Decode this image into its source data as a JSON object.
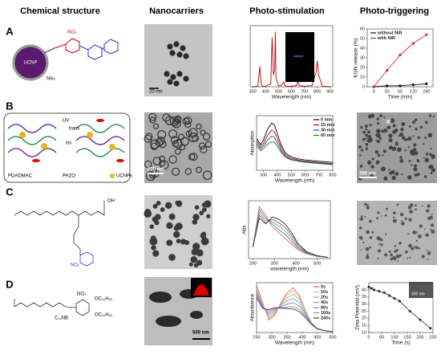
{
  "headers": [
    "Chemical structure",
    "Nanocarriers",
    "Photo-stimulation",
    "Photo-triggering"
  ],
  "row_labels": [
    "A",
    "B",
    "C",
    "D"
  ],
  "structures": {
    "A": [
      "UCNP",
      "NH₂",
      "NO₂"
    ],
    "B": [
      "UV",
      "trans",
      "cis",
      "PDADMAC",
      "PAZO",
      "UCNPs"
    ],
    "C": [
      "OH",
      "NO₂"
    ],
    "D": [
      "C₁₂NB",
      "NO₂",
      "OC₁₂H₂₅",
      "OC₁₂H₂₅"
    ]
  },
  "micrographs": {
    "A": "20 nm",
    "B": "200 nm",
    "B_release": "200 nm",
    "B_release_label": "B'",
    "D": "500 nm",
    "D_zeta_inset": "500 nm"
  },
  "chart_data": [
    {
      "type": "line",
      "xlabel": "Wavelength (nm)",
      "xlim": [
        280,
        920
      ],
      "xticks": [
        300,
        400,
        500,
        600,
        700,
        800,
        900
      ],
      "ylim": [
        0,
        1.05
      ],
      "x": [
        300,
        340,
        355,
        365,
        375,
        400,
        440,
        450,
        460,
        470,
        475,
        480,
        500,
        520,
        540,
        550,
        560,
        600,
        640,
        650,
        660,
        700,
        760,
        790,
        800,
        810,
        840,
        900
      ],
      "series": [
        {
          "color": "#c00000",
          "values": [
            0,
            0.01,
            0.35,
            0.05,
            0.01,
            0.01,
            0.05,
            0.85,
            0.2,
            0.3,
            0.95,
            0.15,
            0.02,
            0.02,
            0.08,
            0.02,
            0.01,
            0.01,
            0.02,
            0.1,
            0.02,
            0.01,
            0.02,
            0.25,
            0.45,
            0.2,
            0.01,
            0
          ]
        }
      ]
    },
    {
      "type": "line",
      "xlabel": "Time (min)",
      "ylabel": "KGN release (%)",
      "categories": [
        "0",
        "30",
        "60",
        "120",
        "240"
      ],
      "ylim": [
        0,
        60
      ],
      "yticks": [
        0,
        10,
        20,
        30,
        40,
        50,
        60
      ],
      "legend": "upper left",
      "markers": true,
      "series": [
        {
          "name": "without NIR",
          "color": "#111111",
          "values": [
            0,
            1,
            1,
            2,
            3
          ]
        },
        {
          "name": "with NIR",
          "color": "#d62728",
          "values": [
            0,
            17,
            33,
            45,
            54
          ]
        }
      ]
    },
    {
      "type": "line",
      "xlabel": "Wavelength (nm)",
      "ylabel": "Absorption",
      "xlim": [
        250,
        800
      ],
      "xticks": [
        300,
        400,
        500,
        600,
        700,
        800
      ],
      "ylim": [
        0.1,
        1
      ],
      "legend": "upper right",
      "x": [
        250,
        280,
        300,
        330,
        360,
        380,
        400,
        430,
        460,
        500,
        550,
        600,
        700,
        800
      ],
      "series": [
        {
          "name": "0 min",
          "color": "#000000",
          "values": [
            0.62,
            0.52,
            0.6,
            0.78,
            0.88,
            0.84,
            0.7,
            0.5,
            0.38,
            0.32,
            0.29,
            0.27,
            0.25,
            0.23
          ]
        },
        {
          "name": "15 min",
          "color": "#e00000",
          "values": [
            0.58,
            0.48,
            0.54,
            0.68,
            0.76,
            0.73,
            0.62,
            0.45,
            0.35,
            0.3,
            0.27,
            0.25,
            0.23,
            0.21
          ]
        },
        {
          "name": "30 min",
          "color": "#1f3fd6",
          "values": [
            0.54,
            0.45,
            0.5,
            0.6,
            0.66,
            0.64,
            0.55,
            0.41,
            0.33,
            0.28,
            0.26,
            0.24,
            0.22,
            0.2
          ]
        },
        {
          "name": "60 min",
          "color": "#1a8a1a",
          "values": [
            0.5,
            0.42,
            0.46,
            0.53,
            0.57,
            0.56,
            0.49,
            0.38,
            0.31,
            0.27,
            0.25,
            0.23,
            0.21,
            0.19
          ]
        }
      ]
    },
    {
      "type": "line",
      "xlabel": "wavelength (nm)",
      "ylabel": "Abs",
      "xlim": [
        180,
        560
      ],
      "xticks": [
        200,
        300,
        400,
        500
      ],
      "ylim": [
        0,
        1
      ],
      "x": [
        200,
        230,
        260,
        290,
        320,
        350,
        380,
        410,
        450,
        500,
        550
      ],
      "series": [
        {
          "color": "#e06666",
          "values": [
            0.2,
            0.9,
            0.75,
            0.55,
            0.45,
            0.35,
            0.25,
            0.15,
            0.08,
            0.04,
            0.02
          ]
        },
        {
          "color": "#3d85c6",
          "values": [
            0.2,
            0.85,
            0.7,
            0.6,
            0.5,
            0.42,
            0.3,
            0.18,
            0.09,
            0.04,
            0.02
          ]
        },
        {
          "color": "#6aa84f",
          "values": [
            0.2,
            0.8,
            0.66,
            0.64,
            0.56,
            0.48,
            0.35,
            0.2,
            0.1,
            0.05,
            0.02
          ]
        },
        {
          "color": "#a64d79",
          "values": [
            0.2,
            0.75,
            0.62,
            0.68,
            0.62,
            0.54,
            0.4,
            0.23,
            0.11,
            0.05,
            0.02
          ]
        },
        {
          "color": "#333333",
          "values": [
            0.2,
            0.7,
            0.6,
            0.72,
            0.68,
            0.6,
            0.45,
            0.26,
            0.12,
            0.05,
            0.02
          ]
        }
      ]
    },
    {
      "type": "line",
      "xlabel": "Wavelength (nm)",
      "ylabel": "Absorbance",
      "xlim": [
        250,
        500
      ],
      "xticks": [
        250,
        300,
        350,
        400,
        450,
        500
      ],
      "ylim": [
        0,
        1
      ],
      "legend": "upper right",
      "x": [
        250,
        270,
        290,
        310,
        330,
        350,
        370,
        390,
        410,
        430,
        450,
        480,
        500
      ],
      "series": [
        {
          "name": "0s",
          "color": "#e06666",
          "values": [
            0.95,
            0.6,
            0.25,
            0.35,
            0.6,
            0.8,
            0.9,
            0.75,
            0.45,
            0.2,
            0.08,
            0.03,
            0.02
          ]
        },
        {
          "name": "10s",
          "color": "#f6b26b",
          "values": [
            0.9,
            0.58,
            0.28,
            0.38,
            0.58,
            0.75,
            0.84,
            0.72,
            0.44,
            0.2,
            0.08,
            0.03,
            0.02
          ]
        },
        {
          "name": "20s",
          "color": "#93c47d",
          "values": [
            0.86,
            0.56,
            0.31,
            0.4,
            0.56,
            0.7,
            0.77,
            0.67,
            0.42,
            0.2,
            0.08,
            0.03,
            0.02
          ]
        },
        {
          "name": "40s",
          "color": "#6fa8dc",
          "values": [
            0.82,
            0.54,
            0.35,
            0.43,
            0.54,
            0.64,
            0.69,
            0.6,
            0.39,
            0.19,
            0.08,
            0.03,
            0.02
          ]
        },
        {
          "name": "80s",
          "color": "#8e7cc3",
          "values": [
            0.78,
            0.52,
            0.39,
            0.46,
            0.52,
            0.57,
            0.6,
            0.53,
            0.36,
            0.18,
            0.07,
            0.03,
            0.02
          ]
        },
        {
          "name": "160s",
          "color": "#c27ba0",
          "values": [
            0.74,
            0.5,
            0.43,
            0.48,
            0.5,
            0.51,
            0.52,
            0.46,
            0.33,
            0.17,
            0.07,
            0.03,
            0.02
          ]
        },
        {
          "name": "240s",
          "color": "#444444",
          "values": [
            0.7,
            0.48,
            0.46,
            0.5,
            0.49,
            0.48,
            0.47,
            0.42,
            0.3,
            0.16,
            0.07,
            0.03,
            0.02
          ]
        }
      ]
    },
    {
      "type": "line",
      "xlabel": "Time (s)",
      "ylabel": "Zeta Potential (mV)",
      "xlim": [
        0,
        250
      ],
      "xticks": [
        0,
        50,
        100,
        150,
        200,
        250
      ],
      "ylim": [
        10,
        45
      ],
      "yticks": [
        10,
        15,
        20,
        25,
        30,
        35,
        40
      ],
      "markers": true,
      "x": [
        0,
        10,
        20,
        40,
        60,
        80,
        100,
        120,
        160,
        200,
        240
      ],
      "series": [
        {
          "color": "#333333",
          "values": [
            42,
            41,
            40,
            39,
            38,
            36,
            34,
            32,
            25,
            19,
            13
          ]
        }
      ]
    }
  ]
}
